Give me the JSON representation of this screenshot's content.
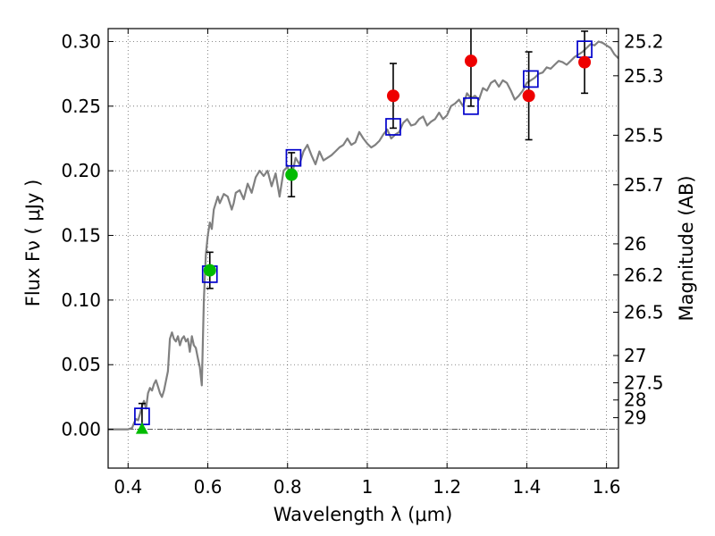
{
  "chart_data": {
    "type": "scatter",
    "xlabel": "Wavelength  λ (μm)",
    "ylabel": "Flux  Fν  ( μJy )",
    "y2label": "Magnitude (AB)",
    "xlim": [
      0.35,
      1.63
    ],
    "ylim": [
      -0.03,
      0.31
    ],
    "xticks": [
      0.4,
      0.6,
      0.8,
      1.0,
      1.2,
      1.4,
      1.6
    ],
    "xtick_labels": [
      "0.4",
      "0.6",
      "0.8",
      "1",
      "1.2",
      "1.4",
      "1.6"
    ],
    "yticks": [
      0.0,
      0.05,
      0.1,
      0.15,
      0.2,
      0.25,
      0.3
    ],
    "ytick_labels": [
      "0.00",
      "0.05",
      "0.10",
      "0.15",
      "0.20",
      "0.25",
      "0.30"
    ],
    "mag_ticks": [
      {
        "label": "25.2",
        "flux": 0.2999
      },
      {
        "label": "25.3",
        "flux": 0.2735
      },
      {
        "label": "25.5",
        "flux": 0.2275
      },
      {
        "label": "25.7",
        "flux": 0.1892
      },
      {
        "label": "26",
        "flux": 0.1435
      },
      {
        "label": "26.2",
        "flux": 0.1194
      },
      {
        "label": "26.5",
        "flux": 0.0906
      },
      {
        "label": "27",
        "flux": 0.0571
      },
      {
        "label": "27.5",
        "flux": 0.036
      },
      {
        "label": "28",
        "flux": 0.0227
      },
      {
        "label": "29",
        "flux": 0.009
      }
    ],
    "zero_line": 0.0,
    "series": [
      {
        "name": "model spectrum",
        "kind": "line",
        "color": "#808080",
        "x": [
          0.35,
          0.4,
          0.41,
          0.415,
          0.42,
          0.425,
          0.43,
          0.435,
          0.44,
          0.445,
          0.45,
          0.455,
          0.46,
          0.465,
          0.47,
          0.475,
          0.48,
          0.485,
          0.49,
          0.5,
          0.505,
          0.51,
          0.515,
          0.52,
          0.525,
          0.53,
          0.535,
          0.54,
          0.545,
          0.55,
          0.555,
          0.56,
          0.565,
          0.57,
          0.575,
          0.58,
          0.585,
          0.59,
          0.595,
          0.6,
          0.605,
          0.61,
          0.615,
          0.62,
          0.625,
          0.63,
          0.64,
          0.65,
          0.66,
          0.665,
          0.67,
          0.68,
          0.69,
          0.7,
          0.71,
          0.72,
          0.73,
          0.74,
          0.75,
          0.76,
          0.77,
          0.78,
          0.79,
          0.8,
          0.81,
          0.82,
          0.83,
          0.84,
          0.85,
          0.86,
          0.87,
          0.88,
          0.89,
          0.9,
          0.91,
          0.92,
          0.93,
          0.94,
          0.95,
          0.96,
          0.97,
          0.98,
          0.99,
          1.0,
          1.01,
          1.02,
          1.03,
          1.04,
          1.05,
          1.06,
          1.07,
          1.08,
          1.09,
          1.1,
          1.11,
          1.12,
          1.13,
          1.14,
          1.15,
          1.16,
          1.17,
          1.18,
          1.19,
          1.2,
          1.21,
          1.22,
          1.23,
          1.24,
          1.25,
          1.26,
          1.27,
          1.28,
          1.29,
          1.3,
          1.31,
          1.32,
          1.33,
          1.34,
          1.35,
          1.36,
          1.37,
          1.38,
          1.39,
          1.4,
          1.41,
          1.42,
          1.43,
          1.44,
          1.45,
          1.46,
          1.47,
          1.48,
          1.49,
          1.5,
          1.51,
          1.52,
          1.53,
          1.54,
          1.55,
          1.56,
          1.57,
          1.58,
          1.59,
          1.6,
          1.61,
          1.62,
          1.63
        ],
        "y": [
          0.0,
          0.0,
          0.001,
          0.005,
          0.008,
          0.007,
          0.012,
          0.018,
          0.022,
          0.016,
          0.028,
          0.032,
          0.03,
          0.035,
          0.038,
          0.033,
          0.028,
          0.025,
          0.03,
          0.045,
          0.07,
          0.075,
          0.07,
          0.068,
          0.072,
          0.065,
          0.07,
          0.072,
          0.068,
          0.07,
          0.06,
          0.072,
          0.065,
          0.063,
          0.055,
          0.048,
          0.034,
          0.1,
          0.135,
          0.15,
          0.16,
          0.155,
          0.17,
          0.175,
          0.18,
          0.175,
          0.182,
          0.18,
          0.17,
          0.175,
          0.183,
          0.185,
          0.178,
          0.19,
          0.183,
          0.195,
          0.2,
          0.196,
          0.2,
          0.188,
          0.198,
          0.18,
          0.2,
          0.203,
          0.195,
          0.21,
          0.205,
          0.215,
          0.22,
          0.212,
          0.205,
          0.215,
          0.208,
          0.21,
          0.212,
          0.215,
          0.218,
          0.22,
          0.225,
          0.22,
          0.222,
          0.23,
          0.225,
          0.221,
          0.218,
          0.22,
          0.223,
          0.228,
          0.232,
          0.225,
          0.228,
          0.23,
          0.237,
          0.24,
          0.235,
          0.236,
          0.24,
          0.242,
          0.235,
          0.238,
          0.24,
          0.245,
          0.24,
          0.243,
          0.25,
          0.252,
          0.255,
          0.25,
          0.26,
          0.256,
          0.258,
          0.255,
          0.264,
          0.262,
          0.268,
          0.27,
          0.265,
          0.27,
          0.268,
          0.262,
          0.255,
          0.258,
          0.262,
          0.268,
          0.27,
          0.272,
          0.275,
          0.276,
          0.28,
          0.279,
          0.282,
          0.285,
          0.284,
          0.282,
          0.285,
          0.288,
          0.29,
          0.292,
          0.295,
          0.298,
          0.297,
          0.3,
          0.299,
          0.297,
          0.295,
          0.29,
          0.287
        ]
      },
      {
        "name": "model photometry",
        "kind": "open-square",
        "color": "#0000cc",
        "x": [
          0.435,
          0.605,
          0.815,
          1.065,
          1.26,
          1.41,
          1.545
        ],
        "y": [
          0.01,
          0.12,
          0.21,
          0.234,
          0.25,
          0.271,
          0.294
        ]
      },
      {
        "name": "detections",
        "kind": "filled-circle",
        "color": "#00bb00",
        "x": [
          0.605,
          0.81
        ],
        "y": [
          0.123,
          0.197
        ],
        "err": [
          0.014,
          0.017
        ]
      },
      {
        "name": "upper limit",
        "kind": "triangle",
        "color": "#00bb00",
        "x": [
          0.435
        ],
        "y": [
          0.0
        ],
        "err_up": [
          0.02
        ]
      },
      {
        "name": "detections (red)",
        "kind": "filled-circle",
        "color": "#ee0000",
        "x": [
          1.065,
          1.26,
          1.405,
          1.545
        ],
        "y": [
          0.258,
          0.285,
          0.258,
          0.284
        ],
        "err": [
          0.025,
          0.035,
          0.034,
          0.024
        ]
      }
    ]
  }
}
